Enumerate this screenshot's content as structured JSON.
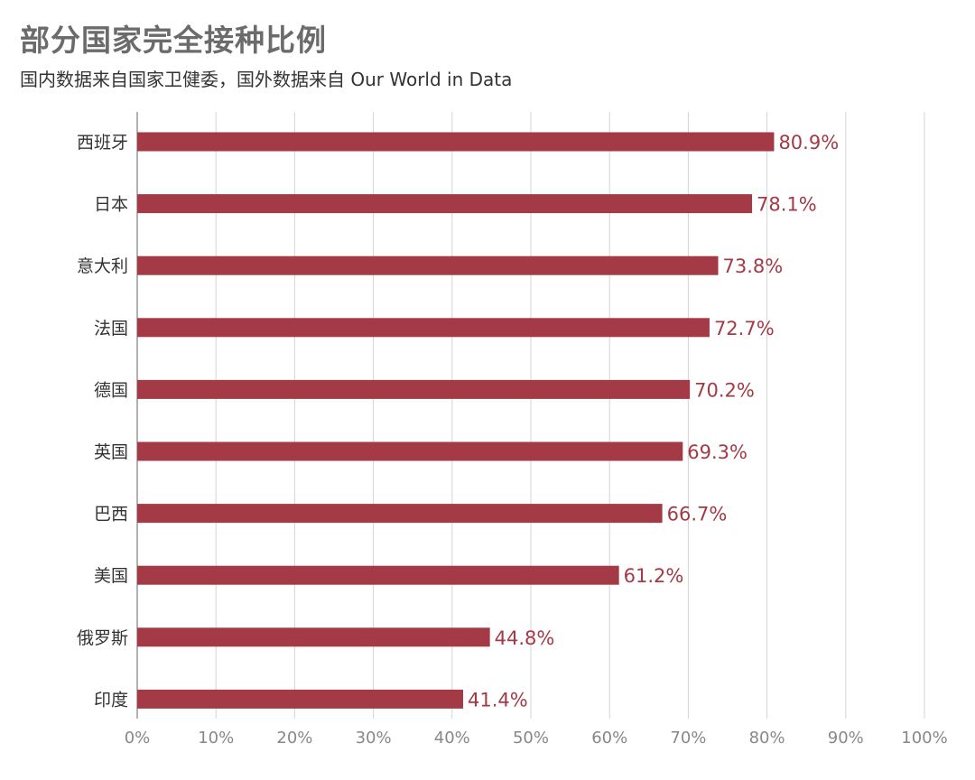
{
  "header": {
    "title": "部分国家完全接种比例",
    "subtitle": "国内数据来自国家卫健委，国外数据来自 Our World in Data"
  },
  "colors": {
    "bar": "#a33a46",
    "value_label": "#a33a46",
    "grid": "#d4d4d4",
    "axis": "#999999"
  },
  "chart_data": {
    "type": "bar",
    "orientation": "horizontal",
    "title": "部分国家完全接种比例",
    "subtitle": "国内数据来自国家卫健委，国外数据来自 Our World in Data",
    "categories": [
      "西班牙",
      "日本",
      "意大利",
      "法国",
      "德国",
      "英国",
      "巴西",
      "美国",
      "俄罗斯",
      "印度"
    ],
    "values": [
      80.9,
      78.1,
      73.8,
      72.7,
      70.2,
      69.3,
      66.7,
      61.2,
      44.8,
      41.4
    ],
    "value_labels": [
      "80.9%",
      "78.1%",
      "73.8%",
      "72.7%",
      "70.2%",
      "69.3%",
      "66.7%",
      "61.2%",
      "44.8%",
      "41.4%"
    ],
    "xlim": [
      0,
      100
    ],
    "xticks": [
      "0%",
      "10%",
      "20%",
      "30%",
      "40%",
      "50%",
      "60%",
      "70%",
      "80%",
      "90%",
      "100%"
    ],
    "grid": true
  }
}
